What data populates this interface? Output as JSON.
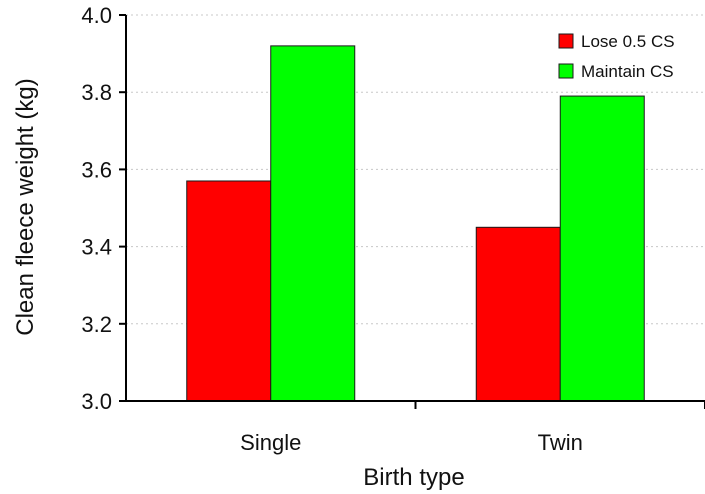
{
  "chart_data": {
    "type": "bar",
    "xlabel": "Birth type",
    "ylabel": "Clean fleece weight (kg)",
    "categories": [
      "Single",
      "Twin"
    ],
    "ylim": [
      3.0,
      4.0
    ],
    "yticks": [
      "3.0",
      "3.2",
      "3.4",
      "3.6",
      "3.8",
      "4.0"
    ],
    "grid": true,
    "legend_position": "top-right",
    "series": [
      {
        "name": "Lose 0.5 CS",
        "values": [
          3.57,
          3.45
        ],
        "color": "#ff0000"
      },
      {
        "name": "Maintain CS",
        "values": [
          3.92,
          3.79
        ],
        "color": "#00ff00"
      }
    ]
  }
}
